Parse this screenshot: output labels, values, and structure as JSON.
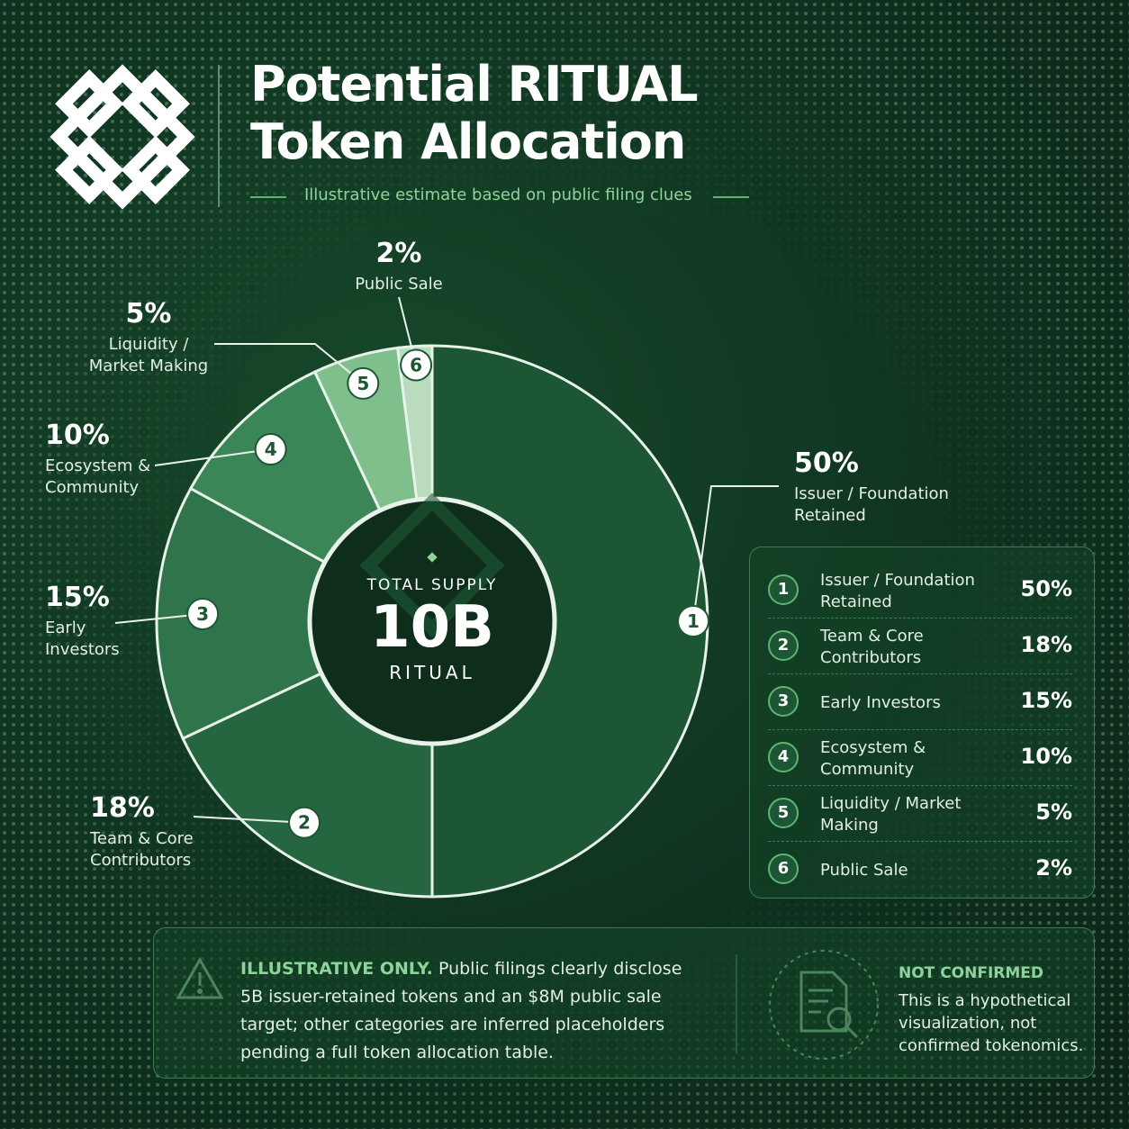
{
  "header": {
    "title": "Potential RITUAL Token Allocation",
    "subtitle": "Illustrative estimate based on public filing clues"
  },
  "chart_data": {
    "type": "pie",
    "categories": [
      "Issuer / Foundation Retained",
      "Team & Core Contributors",
      "Early Investors",
      "Ecosystem & Community",
      "Liquidity / Market Making",
      "Public Sale"
    ],
    "values": [
      50,
      18,
      15,
      10,
      5,
      2
    ],
    "value_labels": [
      "50%",
      "18%",
      "15%",
      "10%",
      "5%",
      "2%"
    ],
    "markers": [
      "1",
      "2",
      "3",
      "4",
      "5",
      "6"
    ],
    "colors": [
      "#1d5634",
      "#256540",
      "#2f744b",
      "#3a8657",
      "#7fbf8c",
      "#b9dcbf"
    ],
    "center": {
      "label": "TOTAL SUPPLY",
      "value": "10B",
      "unit": "RITUAL"
    }
  },
  "note": {
    "heading": "ILLUSTRATIVE ONLY.",
    "text": "Public filings clearly disclose 5B issuer-retained tokens and an $8M public sale target; other categories are inferred placeholders pending a full token allocation table.",
    "badge_title": "NOT CONFIRMED",
    "badge_text": "This is a hypothetical visualization, not confirmed tokenomics."
  }
}
